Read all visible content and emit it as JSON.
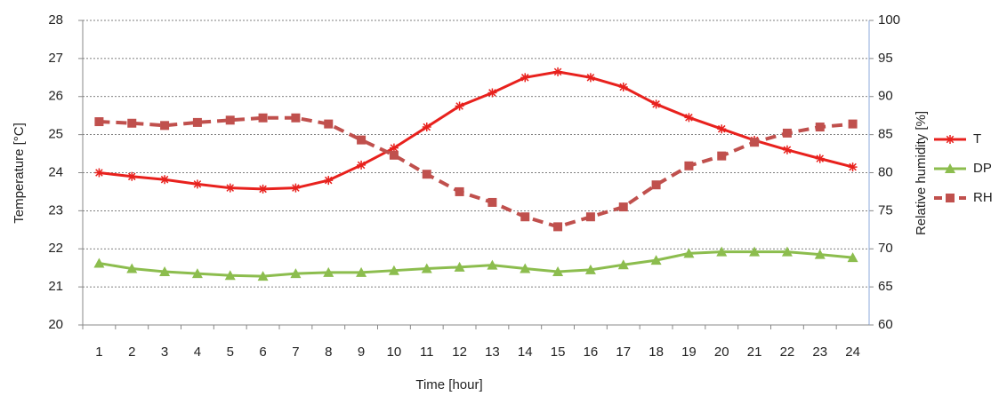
{
  "chart_data": {
    "type": "line",
    "x_label": "Time [hour]",
    "y_label": "Temperature  [°C]",
    "y2_label": "Relative humidity  [%]",
    "categories": [
      "1",
      "2",
      "3",
      "4",
      "5",
      "6",
      "7",
      "8",
      "9",
      "10",
      "11",
      "12",
      "13",
      "14",
      "15",
      "16",
      "17",
      "18",
      "19",
      "20",
      "21",
      "22",
      "23",
      "24"
    ],
    "ylim": [
      20,
      28
    ],
    "yticks": [
      20,
      21,
      22,
      23,
      24,
      25,
      26,
      27,
      28
    ],
    "y2lim": [
      60,
      100
    ],
    "y2ticks": [
      60,
      65,
      70,
      75,
      80,
      85,
      90,
      95,
      100
    ],
    "grid": true,
    "legend": "right",
    "series": [
      {
        "name": "T",
        "color": "#e8211d",
        "marker": "star",
        "dashed": false,
        "values": [
          24.0,
          23.9,
          23.82,
          23.7,
          23.6,
          23.57,
          23.6,
          23.8,
          24.2,
          24.65,
          25.2,
          25.75,
          26.1,
          26.5,
          26.65,
          26.5,
          26.25,
          25.8,
          25.45,
          25.15,
          24.85,
          24.6,
          24.37,
          24.15
        ]
      },
      {
        "name": "DP",
        "color": "#8cbd4e",
        "marker": "triangle",
        "dashed": false,
        "values": [
          21.62,
          21.48,
          21.4,
          21.35,
          21.3,
          21.28,
          21.35,
          21.38,
          21.38,
          21.43,
          21.48,
          21.52,
          21.57,
          21.48,
          21.4,
          21.45,
          21.58,
          21.7,
          21.88,
          21.92,
          21.92,
          21.92,
          21.85,
          21.77
        ]
      },
      {
        "name": "RH",
        "color": "#c0504d",
        "marker": "square",
        "dashed": true,
        "axis": "y2",
        "values": [
          86.7,
          86.5,
          86.2,
          86.6,
          86.9,
          87.2,
          87.2,
          86.4,
          84.3,
          82.3,
          79.8,
          77.5,
          76.1,
          74.2,
          72.9,
          74.2,
          75.5,
          78.4,
          80.9,
          82.2,
          84.0,
          85.2,
          86.0,
          86.4
        ]
      }
    ]
  }
}
